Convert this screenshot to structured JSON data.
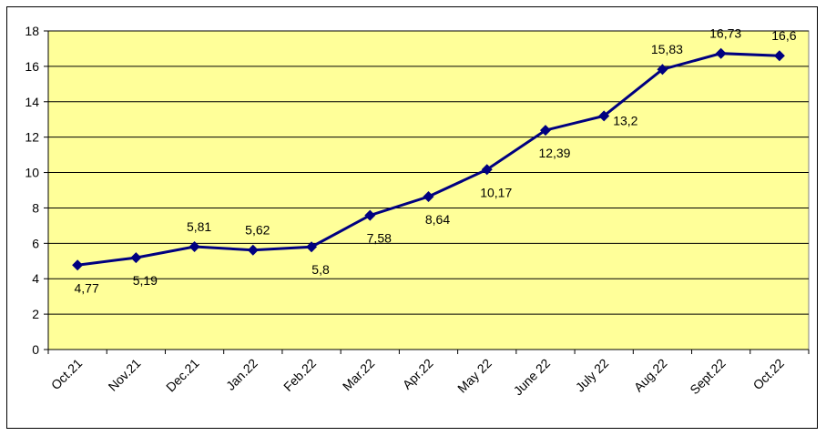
{
  "chart_data": {
    "type": "line",
    "categories": [
      "Oct.21",
      "Nov.21",
      "Dec.21",
      "Jan.22",
      "Feb.22",
      "Mar.22",
      "Apr.22",
      "May 22",
      "June 22",
      "July 22",
      "Aug.22",
      "Sept.22",
      "Oct.22"
    ],
    "series": [
      {
        "values": [
          4.77,
          5.19,
          5.81,
          5.62,
          5.8,
          7.58,
          8.64,
          10.17,
          12.39,
          13.2,
          15.83,
          16.73,
          16.6
        ],
        "labels": [
          "4,77",
          "5,19",
          "5,81",
          "5,62",
          "5,8",
          "7,58",
          "8,64",
          "10,17",
          "12,39",
          "13,2",
          "15,83",
          "16,73",
          "16,6"
        ]
      }
    ],
    "ylim": [
      0,
      18
    ],
    "yticks": [
      "0",
      "2",
      "4",
      "6",
      "8",
      "10",
      "12",
      "14",
      "16",
      "18"
    ],
    "grid": true,
    "colors": {
      "plot_background": "#ffff99",
      "line": "#000080",
      "grid": "#000000"
    }
  }
}
